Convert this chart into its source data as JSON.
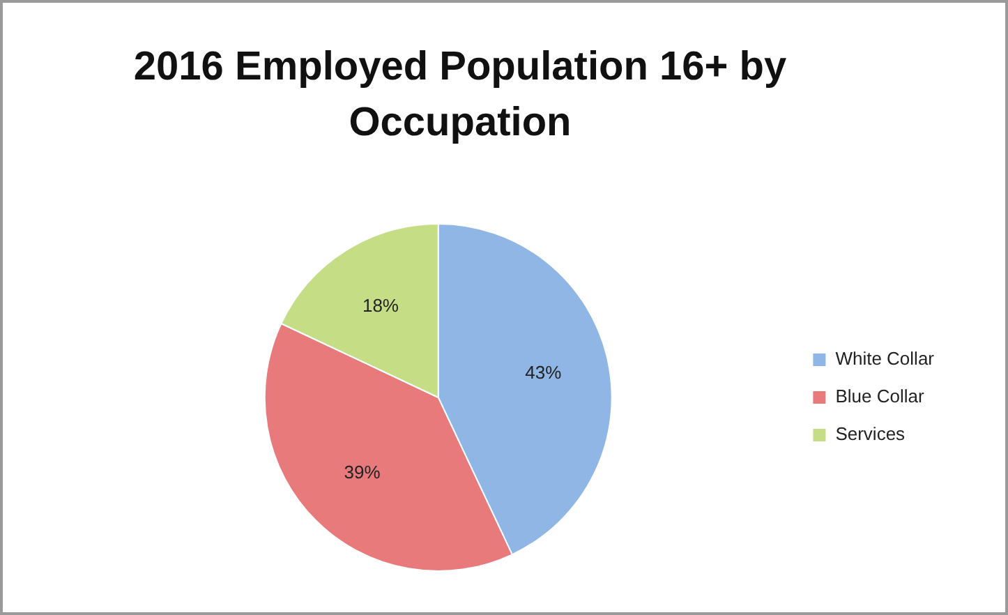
{
  "chart_data": {
    "type": "pie",
    "title": "2016 Employed Population 16+ by Occupation",
    "categories": [
      "White Collar",
      "Blue Collar",
      "Services"
    ],
    "values": [
      43,
      39,
      18
    ],
    "colors": [
      "#8fb6e4",
      "#e87a7c",
      "#c5de86"
    ],
    "value_labels": [
      "43%",
      "39%",
      "18%"
    ],
    "legend": "right"
  }
}
